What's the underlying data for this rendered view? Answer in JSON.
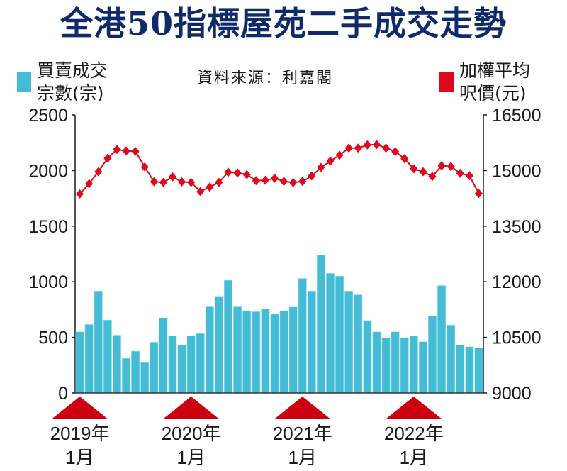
{
  "title": "全港50指標屋苑二手成交走勢",
  "legend": {
    "bars": {
      "label": "買賣成交\n宗數(宗)",
      "color": "#45bcd5"
    },
    "line": {
      "label": "加權平均\n呎價(元)",
      "color": "#e0081c"
    }
  },
  "source": "資料來源：利嘉閣",
  "colors": {
    "title": "#0e2a6b",
    "bar": "#45bcd5",
    "line": "#e0081c",
    "marker_triangle": "#cc0010",
    "axis": "#1a1a1a"
  },
  "chart_data": {
    "type": "bar+line",
    "title": "全港50指標屋苑二手成交走勢",
    "x_period": "2019-01 to 2022-08 (monthly)",
    "x_markers": [
      {
        "index": 0,
        "line1": "2019年",
        "line2": "1月"
      },
      {
        "index": 12,
        "line1": "2020年",
        "line2": "1月"
      },
      {
        "index": 24,
        "line1": "2021年",
        "line2": "1月"
      },
      {
        "index": 36,
        "line1": "2022年",
        "line2": "1月"
      }
    ],
    "left_axis": {
      "label": "買賣成交宗數(宗)",
      "range": [
        0,
        2500
      ],
      "ticks": [
        0,
        500,
        1000,
        1500,
        2000,
        2500
      ]
    },
    "right_axis": {
      "label": "加權平均呎價(元)",
      "range": [
        9000,
        16500
      ],
      "ticks": [
        9000,
        10500,
        12000,
        13500,
        15000,
        16500
      ]
    },
    "grid": false,
    "series": [
      {
        "name": "買賣成交宗數(宗)",
        "type": "bar",
        "axis": "left",
        "values": [
          550,
          616,
          917,
          656,
          520,
          312,
          376,
          274,
          457,
          673,
          514,
          433,
          514,
          535,
          775,
          870,
          1013,
          775,
          737,
          731,
          754,
          709,
          737,
          773,
          1030,
          917,
          1240,
          1076,
          1051,
          917,
          883,
          652,
          550,
          497,
          550,
          497,
          514,
          461,
          692,
          966,
          611,
          431,
          416,
          406
        ]
      },
      {
        "name": "加權平均呎價(元)",
        "type": "line",
        "axis": "right",
        "marker": "diamond",
        "values": [
          14369,
          14642,
          14968,
          15331,
          15568,
          15530,
          15517,
          15096,
          14700,
          14681,
          14828,
          14694,
          14681,
          14432,
          14554,
          14681,
          14955,
          14936,
          14891,
          14726,
          14738,
          14790,
          14707,
          14675,
          14707,
          14853,
          15083,
          15254,
          15415,
          15606,
          15606,
          15689,
          15702,
          15606,
          15511,
          15320,
          15044,
          14968,
          14841,
          15128,
          15109,
          14923,
          14860,
          14382
        ]
      }
    ]
  }
}
